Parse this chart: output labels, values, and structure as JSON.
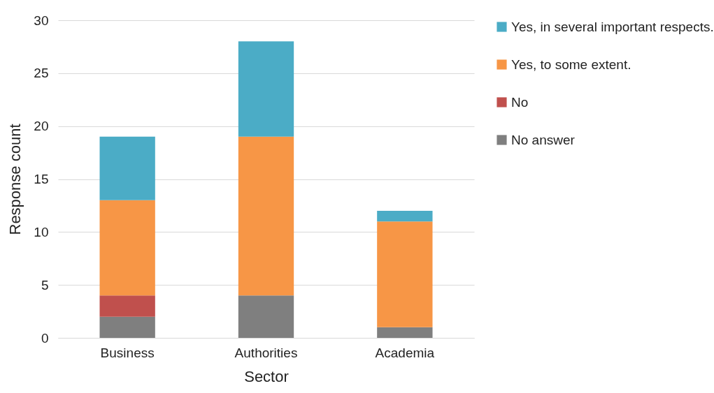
{
  "chart_data": {
    "type": "bar",
    "stacked": true,
    "xlabel": "Sector",
    "ylabel": "Response count",
    "categories": [
      "Business",
      "Authorities",
      "Academia"
    ],
    "series": [
      {
        "name": "No answer",
        "color": "#7f7f7f",
        "values": [
          2,
          4,
          1
        ]
      },
      {
        "name": "No",
        "color": "#c0504d",
        "values": [
          2,
          0,
          0
        ]
      },
      {
        "name": "Yes, to some extent.",
        "color": "#f79646",
        "values": [
          9,
          15,
          10
        ]
      },
      {
        "name": "Yes, in several important respects.",
        "color": "#4bacc6",
        "values": [
          6,
          9,
          1
        ]
      }
    ],
    "ylim": [
      0,
      30
    ],
    "yticks": [
      0,
      5,
      10,
      15,
      20,
      25,
      30
    ],
    "grid": "y",
    "legend": "right"
  }
}
